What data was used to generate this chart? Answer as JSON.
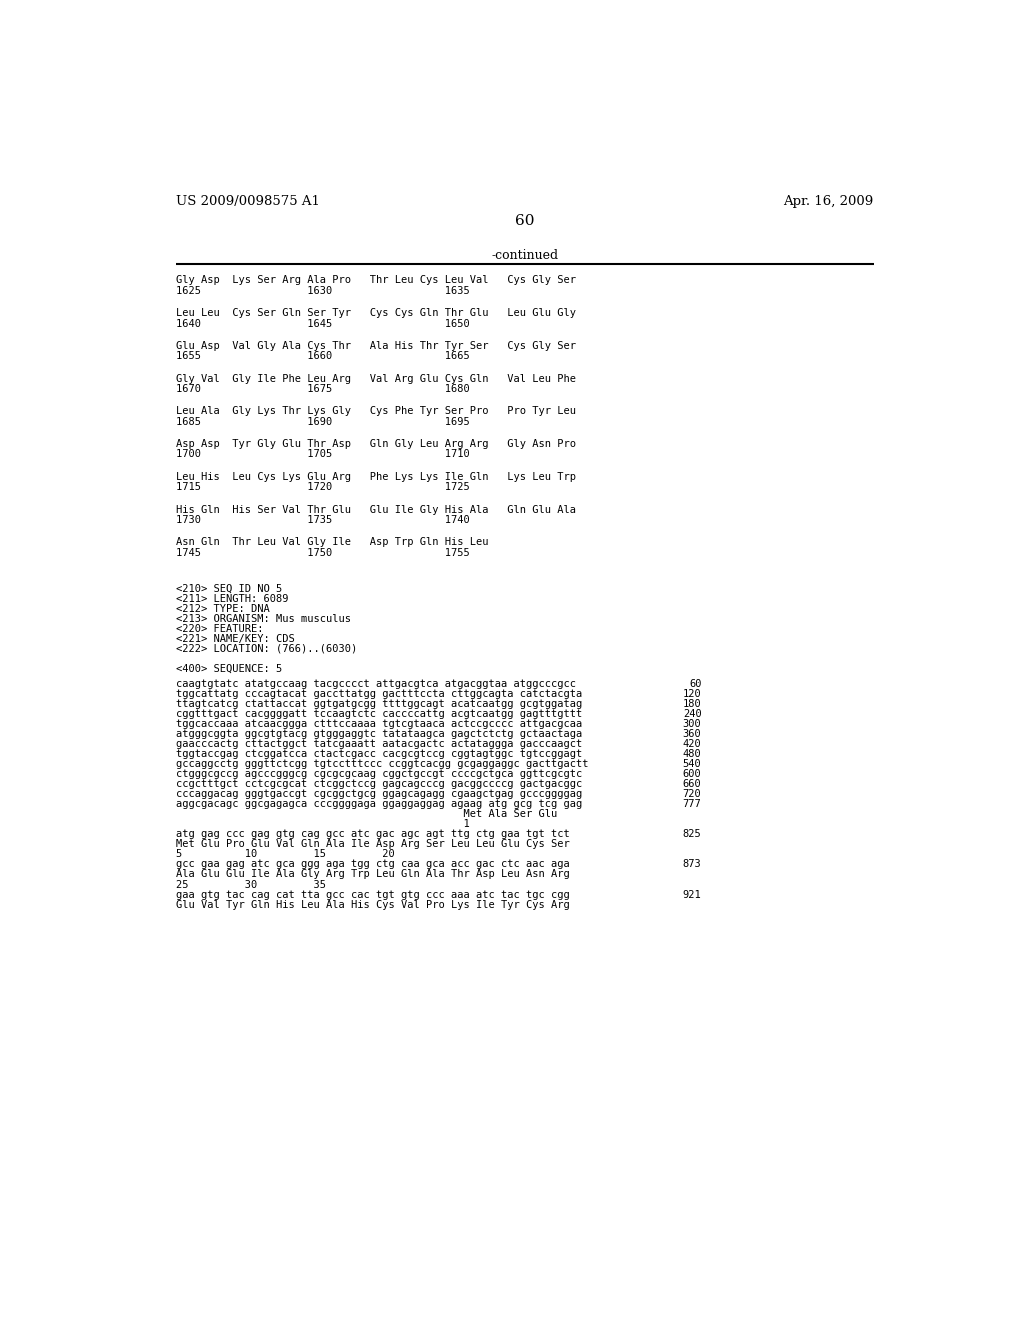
{
  "header_left": "US 2009/0098575 A1",
  "header_right": "Apr. 16, 2009",
  "page_number": "60",
  "continued_label": "-continued",
  "background_color": "#ffffff",
  "protein_blocks": [
    {
      "aa_line": "Gly Asp  Lys Ser Arg Ala Pro   Thr Leu Cys Leu Val   Cys Gly Ser",
      "num_line": "1625                 1630                  1635"
    },
    {
      "aa_line": "Leu Leu  Cys Ser Gln Ser Tyr   Cys Cys Gln Thr Glu   Leu Glu Gly",
      "num_line": "1640                 1645                  1650"
    },
    {
      "aa_line": "Glu Asp  Val Gly Ala Cys Thr   Ala His Thr Tyr Ser   Cys Gly Ser",
      "num_line": "1655                 1660                  1665"
    },
    {
      "aa_line": "Gly Val  Gly Ile Phe Leu Arg   Val Arg Glu Cys Gln   Val Leu Phe",
      "num_line": "1670                 1675                  1680"
    },
    {
      "aa_line": "Leu Ala  Gly Lys Thr Lys Gly   Cys Phe Tyr Ser Pro   Pro Tyr Leu",
      "num_line": "1685                 1690                  1695"
    },
    {
      "aa_line": "Asp Asp  Tyr Gly Glu Thr Asp   Gln Gly Leu Arg Arg   Gly Asn Pro",
      "num_line": "1700                 1705                  1710"
    },
    {
      "aa_line": "Leu His  Leu Cys Lys Glu Arg   Phe Lys Lys Ile Gln   Lys Leu Trp",
      "num_line": "1715                 1720                  1725"
    },
    {
      "aa_line": "His Gln  His Ser Val Thr Glu   Glu Ile Gly His Ala   Gln Glu Ala",
      "num_line": "1730                 1735                  1740"
    },
    {
      "aa_line": "Asn Gln  Thr Leu Val Gly Ile   Asp Trp Gln His Leu",
      "num_line": "1745                 1750                  1755"
    }
  ],
  "meta_lines": [
    "<210> SEQ ID NO 5",
    "<211> LENGTH: 6089",
    "<212> TYPE: DNA",
    "<213> ORGANISM: Mus musculus",
    "<220> FEATURE:",
    "<221> NAME/KEY: CDS",
    "<222> LOCATION: (766)..(6030)"
  ],
  "seq_label": "<400> SEQUENCE: 5",
  "sequence_blocks": [
    {
      "seq": "caagtgtatc atatgccaag tacgcccct attgacgtca atgacggtaa atggcccgcc",
      "num": "60"
    },
    {
      "seq": "tggcattatg cccagtacat gaccttatgg gactttccta cttggcagta catctacgta",
      "num": "120"
    },
    {
      "seq": "ttagtcatcg ctattaccat ggtgatgcgg ttttggcagt acatcaatgg gcgtggatag",
      "num": "180"
    },
    {
      "seq": "cggtttgact cacggggatt tccaagtctc caccccattg acgtcaatgg gagtttgttt",
      "num": "240"
    },
    {
      "seq": "tggcaccaaa atcaacggga ctttccaaaa tgtcgtaaca actccgcccc attgacgcaa",
      "num": "300"
    },
    {
      "seq": "atgggcggta ggcgtgtacg gtgggaggtc tatataagca gagctctctg gctaactaga",
      "num": "360"
    },
    {
      "seq": "gaacccactg cttactggct tatcgaaatt aatacgactc actataggga gacccaagct",
      "num": "420"
    },
    {
      "seq": "tggtaccgag ctcggatcca ctactcgacc cacgcgtccg cggtagtggc tgtccggagt",
      "num": "480"
    },
    {
      "seq": "gccaggcctg gggttctcgg tgtcctttccc ccggtcacgg gcgaggaggc gacttgactt",
      "num": "540"
    },
    {
      "seq": "ctgggcgccg agcccgggcg cgcgcgcaag cggctgccgt ccccgctgca ggttcgcgtc",
      "num": "600"
    },
    {
      "seq": "ccgctttgct cctcgcgcat ctcggctccg gagcagcccg gacggccccg gactgacggc",
      "num": "660"
    },
    {
      "seq": "cccaggacag gggtgaccgt cgcggctgcg ggagcagagg cgaagctgag gcccggggag",
      "num": "720"
    },
    {
      "seq": "aggcgacagc ggcgagagca cccggggaga ggaggaggag agaag atg gcg tcg gag",
      "num": "777"
    },
    {
      "seq": "                                              Met Ala Ser Glu",
      "num": ""
    },
    {
      "seq": "                                              1",
      "num": ""
    },
    {
      "seq": "atg gag ccc gag gtg cag gcc atc gac agc agt ttg ctg gaa tgt tct",
      "num": "825"
    },
    {
      "seq": "Met Glu Pro Glu Val Gln Ala Ile Asp Arg Ser Leu Leu Glu Cys Ser",
      "num": ""
    },
    {
      "seq": "5          10         15         20",
      "num": ""
    },
    {
      "seq": "gcc gaa gag atc gca ggg aga tgg ctg caa gca acc gac ctc aac aga",
      "num": "873"
    },
    {
      "seq": "Ala Glu Glu Ile Ala Gly Arg Trp Leu Gln Ala Thr Asp Leu Asn Arg",
      "num": ""
    },
    {
      "seq": "25         30         35",
      "num": ""
    },
    {
      "seq": "gaa gtg tac cag cat tta gcc cac tgt gtg ccc aaa atc tac tgc cgg",
      "num": "921"
    },
    {
      "seq": "Glu Val Tyr Gln His Leu Ala His Cys Val Pro Lys Ile Tyr Cys Arg",
      "num": ""
    }
  ]
}
